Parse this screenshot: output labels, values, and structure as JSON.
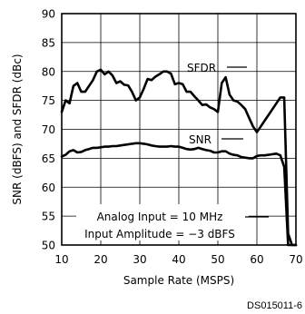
{
  "chart_data": {
    "type": "line",
    "title": "",
    "xlabel": "Sample Rate (MSPS)",
    "ylabel": "SNR (dBFS) and SFDR (dBc)",
    "xlim": [
      10,
      70
    ],
    "ylim": [
      50,
      90
    ],
    "xticks": [
      10,
      20,
      30,
      40,
      50,
      60,
      70
    ],
    "yticks": [
      50,
      55,
      60,
      65,
      70,
      75,
      80,
      85,
      90
    ],
    "grid": true,
    "annotations": [
      "Analog Input = 10 MHz",
      "Input Amplitude = −3 dBFS"
    ],
    "series": [
      {
        "name": "SFDR",
        "x": [
          10,
          11,
          12,
          13,
          14,
          15,
          16,
          17,
          18,
          19,
          20,
          21,
          22,
          23,
          24,
          25,
          26,
          27,
          28,
          29,
          30,
          31,
          32,
          33,
          34,
          35,
          36,
          37,
          38,
          39,
          40,
          41,
          42,
          43,
          44,
          45,
          46,
          47,
          48,
          49,
          50,
          51,
          52,
          53,
          54,
          55,
          56,
          57,
          58,
          59,
          60,
          61,
          62,
          63,
          64,
          65,
          66,
          67,
          68,
          69,
          70
        ],
        "y": [
          73.0,
          75.0,
          74.5,
          77.5,
          78.0,
          76.5,
          76.5,
          77.5,
          78.5,
          80.0,
          80.3,
          79.5,
          80.0,
          79.3,
          78.0,
          78.3,
          77.7,
          77.6,
          76.5,
          75.0,
          75.5,
          77.0,
          78.7,
          78.5,
          79.1,
          79.5,
          80.0,
          80.0,
          79.6,
          77.8,
          78.0,
          77.8,
          76.5,
          76.5,
          75.7,
          75.0,
          74.2,
          74.3,
          73.8,
          73.5,
          73.0,
          78.0,
          79.0,
          76.0,
          75.0,
          74.8,
          74.2,
          73.5,
          72.0,
          70.5,
          69.5,
          70.5,
          71.5,
          72.5,
          73.5,
          74.5,
          75.5,
          75.5,
          52.0,
          50.0,
          50.0
        ]
      },
      {
        "name": "SNR",
        "x": [
          10,
          11,
          12,
          13,
          14,
          15,
          16,
          17,
          18,
          19,
          20,
          21,
          22,
          23,
          24,
          25,
          26,
          27,
          28,
          29,
          30,
          31,
          32,
          33,
          34,
          35,
          36,
          37,
          38,
          39,
          40,
          41,
          42,
          43,
          44,
          45,
          46,
          47,
          48,
          49,
          50,
          51,
          52,
          53,
          54,
          55,
          56,
          57,
          58,
          59,
          60,
          61,
          62,
          63,
          64,
          65,
          66,
          67,
          68,
          69,
          70
        ],
        "y": [
          65.3,
          65.6,
          66.2,
          66.4,
          66.0,
          66.1,
          66.4,
          66.6,
          66.8,
          66.8,
          66.9,
          67.0,
          67.0,
          67.1,
          67.1,
          67.2,
          67.3,
          67.4,
          67.5,
          67.6,
          67.6,
          67.5,
          67.4,
          67.2,
          67.1,
          67.0,
          67.0,
          67.0,
          67.1,
          67.0,
          67.0,
          66.8,
          66.6,
          66.5,
          66.6,
          66.8,
          66.6,
          66.4,
          66.3,
          66.0,
          66.0,
          66.2,
          66.2,
          65.8,
          65.6,
          65.5,
          65.2,
          65.1,
          65.0,
          65.0,
          65.4,
          65.5,
          65.5,
          65.6,
          65.7,
          65.8,
          65.5,
          63.5,
          50.0,
          50.0,
          50.0
        ]
      }
    ]
  },
  "figure_id": "DS015011-6"
}
